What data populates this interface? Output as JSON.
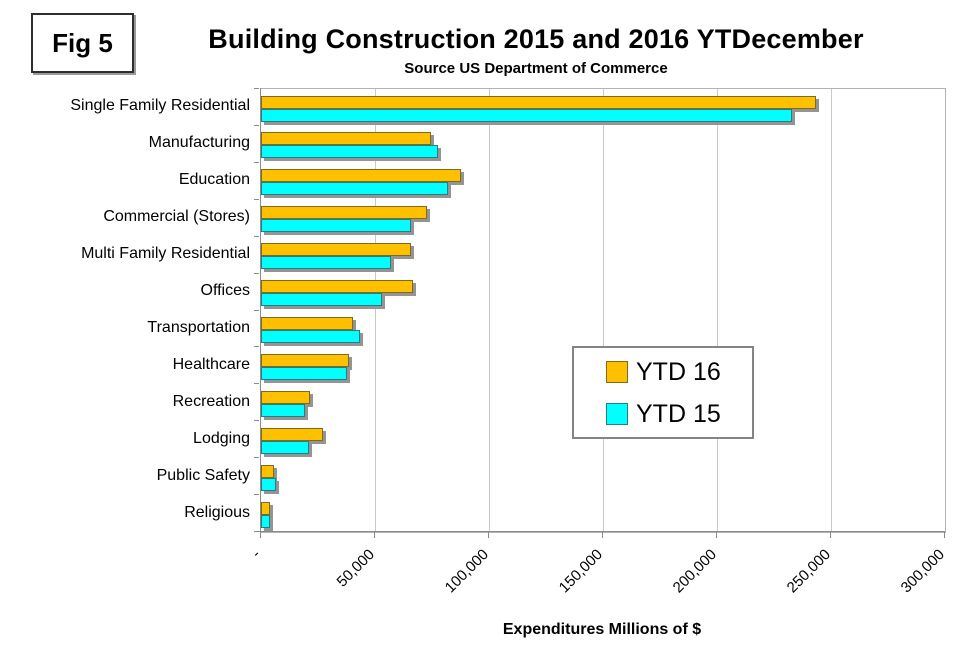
{
  "figure": {
    "label": "Fig 5"
  },
  "chart_data": {
    "type": "bar",
    "orientation": "horizontal",
    "title": "Building Construction 2015 and 2016 YTDecember",
    "subtitle": "Source US Department of Commerce",
    "xlabel": "Expenditures Millions of $",
    "xlim": [
      0,
      300000
    ],
    "xticks": [
      "-",
      "50,000",
      "100,000",
      "150,000",
      "200,000",
      "250,000",
      "300,000"
    ],
    "grid": "vertical",
    "legend_position": "center-right",
    "categories": [
      "Single Family Residential",
      "Manufacturing",
      "Education",
      "Commercial (Stores)",
      "Multi Family Residential",
      "Offices",
      "Transportation",
      "Healthcare",
      "Recreation",
      "Lodging",
      "Public Safety",
      "Religious"
    ],
    "series": [
      {
        "name": "YTD 16",
        "color": "#FFC000",
        "values": [
          243500,
          74500,
          87500,
          73000,
          66000,
          66500,
          40500,
          38500,
          21500,
          27000,
          5700,
          4000
        ]
      },
      {
        "name": "YTD 15",
        "color": "#00FFFF",
        "values": [
          233000,
          77500,
          82000,
          66000,
          57000,
          53000,
          43500,
          37500,
          19500,
          21000,
          6600,
          4000
        ]
      }
    ]
  }
}
